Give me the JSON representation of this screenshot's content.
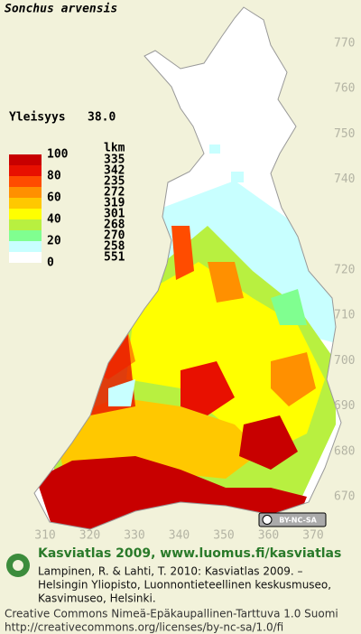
{
  "title": "Sonchus arvensis",
  "frequency": {
    "label": "Yleisyys",
    "value": "38.0"
  },
  "legend": {
    "count_header": "lkm",
    "scale_labels": [
      100,
      80,
      60,
      40,
      20,
      0
    ],
    "classes": [
      {
        "color": "#c80000",
        "count": 335
      },
      {
        "color": "#e81000",
        "count": 342
      },
      {
        "color": "#ff4c00",
        "count": 235
      },
      {
        "color": "#ff9000",
        "count": 272
      },
      {
        "color": "#ffc800",
        "count": 319
      },
      {
        "color": "#ffff00",
        "count": 301
      },
      {
        "color": "#b8f040",
        "count": 268
      },
      {
        "color": "#80ff90",
        "count": 270
      },
      {
        "color": "#c8ffff",
        "count": 258
      },
      {
        "color": "#ffffff",
        "count": 551
      }
    ]
  },
  "grid": {
    "northing": [
      770,
      760,
      750,
      740,
      720,
      710,
      700,
      690,
      680,
      670
    ],
    "easting": [
      310,
      320,
      330,
      340,
      350,
      360,
      370
    ]
  },
  "license_badge": "BY-NC-SA",
  "credits": {
    "heading": "Kasviatlas 2009, www.luomus.fi/kasviatlas",
    "citation": [
      "Lampinen, R. & Lahti, T. 2010: Kasviatlas 2009. –",
      "Helsingin Yliopisto, Luonnontieteellinen keskusmuseo,",
      "Kasvimuseo, Helsinki."
    ],
    "license": [
      "Creative Commons Nimeä-Epäkaupallinen-Tarttuva 1.0 Suomi",
      "http://creativecommons.org/licenses/by-nc-sa/1.0/fi"
    ]
  }
}
